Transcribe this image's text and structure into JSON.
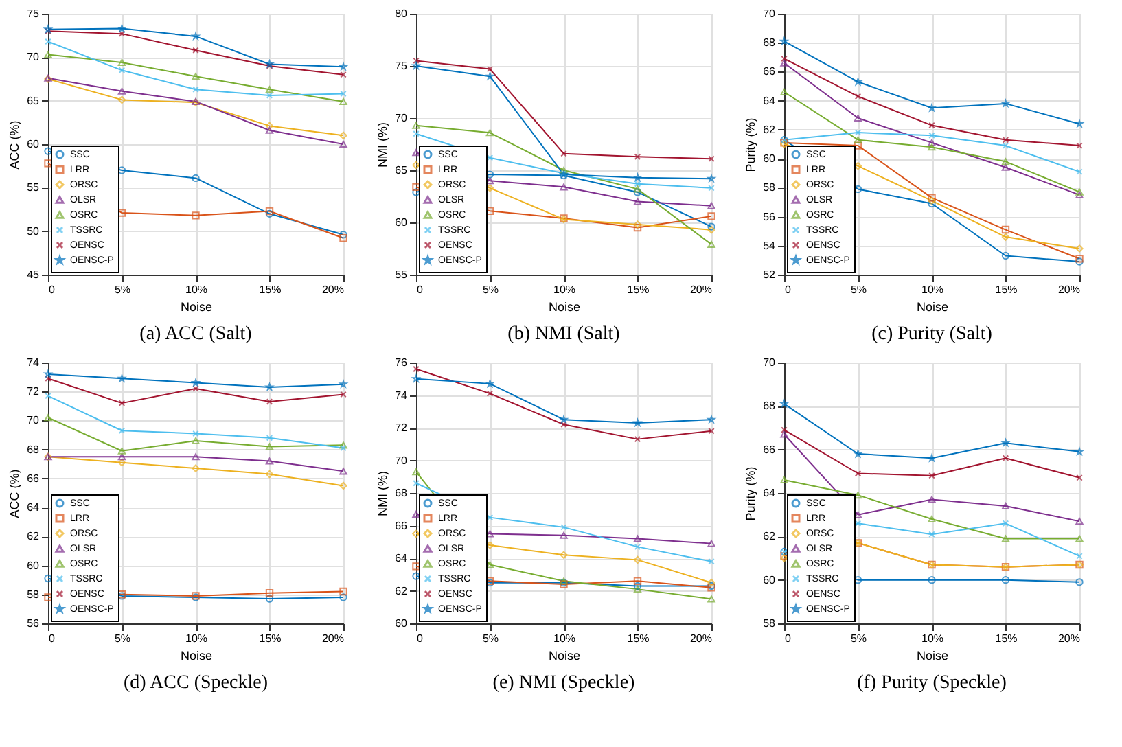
{
  "chart_data": [
    {
      "type": "line",
      "title": "(a)  ACC (Salt)",
      "xlabel": "Noise",
      "ylabel": "ACC (%)",
      "categories": [
        "0",
        "5%",
        "10%",
        "15%",
        "20%"
      ],
      "ylim": [
        45,
        75
      ],
      "yticks": [
        45,
        50,
        55,
        60,
        65,
        70,
        75
      ],
      "grid": true,
      "legend": "bottom left",
      "line_style": "solid",
      "series": [
        {
          "name": "SSC",
          "color": "#0072bd",
          "marker": "circle",
          "values": [
            59.2,
            57.0,
            56.1,
            52.0,
            49.6
          ]
        },
        {
          "name": "LRR",
          "color": "#d95319",
          "marker": "square",
          "values": [
            57.8,
            52.1,
            51.8,
            52.3,
            49.2
          ]
        },
        {
          "name": "ORSC",
          "color": "#edb120",
          "marker": "diamond",
          "values": [
            67.5,
            65.1,
            64.8,
            62.1,
            61.0
          ]
        },
        {
          "name": "OLSR",
          "color": "#7e2f8e",
          "marker": "triangle",
          "values": [
            67.6,
            66.1,
            64.9,
            61.6,
            60.0
          ]
        },
        {
          "name": "OSRC",
          "color": "#77ac30",
          "marker": "triangle",
          "values": [
            70.3,
            69.4,
            67.8,
            66.3,
            64.9
          ]
        },
        {
          "name": "TSSRC",
          "color": "#4dbeee",
          "marker": "cross",
          "values": [
            71.8,
            68.5,
            66.3,
            65.6,
            65.8
          ]
        },
        {
          "name": "OENSC",
          "color": "#a2142f",
          "marker": "cross",
          "values": [
            73.0,
            72.7,
            70.8,
            69.0,
            68.0
          ]
        },
        {
          "name": "OENSC-P",
          "color": "#0072bd",
          "marker": "star",
          "values": [
            73.2,
            73.3,
            72.4,
            69.2,
            68.9
          ]
        }
      ]
    },
    {
      "type": "line",
      "title": "(b)  NMI (Salt)",
      "xlabel": "Noise",
      "ylabel": "NMI (%)",
      "categories": [
        "0",
        "5%",
        "10%",
        "15%",
        "20%"
      ],
      "ylim": [
        55,
        80
      ],
      "yticks": [
        55,
        60,
        65,
        70,
        75,
        80
      ],
      "grid": true,
      "legend": "bottom left",
      "line_style": "solid",
      "series": [
        {
          "name": "SSC",
          "color": "#0072bd",
          "marker": "circle",
          "values": [
            62.9,
            64.6,
            64.5,
            62.9,
            59.6
          ]
        },
        {
          "name": "LRR",
          "color": "#d95319",
          "marker": "square",
          "values": [
            63.4,
            61.1,
            60.4,
            59.5,
            60.6
          ]
        },
        {
          "name": "ORSC",
          "color": "#edb120",
          "marker": "diamond",
          "values": [
            65.5,
            63.3,
            60.3,
            59.8,
            59.3
          ]
        },
        {
          "name": "OLSR",
          "color": "#7e2f8e",
          "marker": "triangle",
          "values": [
            66.7,
            64.0,
            63.4,
            62.0,
            61.6
          ]
        },
        {
          "name": "OSRC",
          "color": "#77ac30",
          "marker": "triangle",
          "values": [
            69.3,
            68.6,
            65.0,
            63.2,
            57.9
          ]
        },
        {
          "name": "TSSRC",
          "color": "#4dbeee",
          "marker": "cross",
          "values": [
            68.5,
            66.2,
            64.7,
            63.7,
            63.3
          ]
        },
        {
          "name": "OENSC",
          "color": "#a2142f",
          "marker": "cross",
          "values": [
            75.5,
            74.7,
            66.6,
            66.3,
            66.1
          ]
        },
        {
          "name": "OENSC-P",
          "color": "#0072bd",
          "marker": "star",
          "values": [
            75.0,
            74.0,
            64.6,
            64.3,
            64.2
          ]
        }
      ]
    },
    {
      "type": "line",
      "title": "(c)  Purity (Salt)",
      "xlabel": "Noise",
      "ylabel": "Purity (%)",
      "categories": [
        "0",
        "5%",
        "10%",
        "15%",
        "20%"
      ],
      "ylim": [
        52,
        70
      ],
      "yticks": [
        52,
        54,
        56,
        58,
        60,
        62,
        64,
        66,
        68,
        70
      ],
      "grid": true,
      "legend": "bottom left",
      "line_style": "solid",
      "series": [
        {
          "name": "SSC",
          "color": "#0072bd",
          "marker": "circle",
          "values": [
            61.3,
            57.9,
            56.9,
            53.3,
            52.9
          ]
        },
        {
          "name": "LRR",
          "color": "#d95319",
          "marker": "square",
          "values": [
            61.1,
            60.9,
            57.3,
            55.1,
            53.1
          ]
        },
        {
          "name": "ORSC",
          "color": "#edb120",
          "marker": "diamond",
          "values": [
            61.0,
            59.5,
            57.1,
            54.6,
            53.8
          ]
        },
        {
          "name": "OLSR",
          "color": "#7e2f8e",
          "marker": "triangle",
          "values": [
            66.6,
            62.8,
            61.1,
            59.4,
            57.5
          ]
        },
        {
          "name": "OSRC",
          "color": "#77ac30",
          "marker": "triangle",
          "values": [
            64.6,
            61.3,
            60.8,
            59.8,
            57.7
          ]
        },
        {
          "name": "TSSRC",
          "color": "#4dbeee",
          "marker": "cross",
          "values": [
            61.3,
            61.8,
            61.6,
            60.9,
            59.1
          ]
        },
        {
          "name": "OENSC",
          "color": "#a2142f",
          "marker": "cross",
          "values": [
            66.9,
            64.3,
            62.3,
            61.3,
            60.9
          ]
        },
        {
          "name": "OENSC-P",
          "color": "#0072bd",
          "marker": "star",
          "values": [
            68.1,
            65.3,
            63.5,
            63.8,
            62.4
          ]
        }
      ]
    },
    {
      "type": "line",
      "title": "(d)  ACC (Speckle)",
      "xlabel": "Noise",
      "ylabel": "ACC (%)",
      "categories": [
        "0",
        "5%",
        "10%",
        "15%",
        "20%"
      ],
      "ylim": [
        56,
        74
      ],
      "yticks": [
        56,
        58,
        60,
        62,
        64,
        66,
        68,
        70,
        72,
        74
      ],
      "grid": true,
      "legend": "bottom left",
      "line_style": "solid",
      "series": [
        {
          "name": "SSC",
          "color": "#0072bd",
          "marker": "circle",
          "values": [
            59.1,
            57.9,
            57.8,
            57.7,
            57.8
          ]
        },
        {
          "name": "LRR",
          "color": "#d95319",
          "marker": "square",
          "values": [
            57.8,
            58.0,
            57.9,
            58.1,
            58.2
          ]
        },
        {
          "name": "ORSC",
          "color": "#edb120",
          "marker": "diamond",
          "values": [
            67.5,
            67.1,
            66.7,
            66.3,
            65.5
          ]
        },
        {
          "name": "OLSR",
          "color": "#7e2f8e",
          "marker": "triangle",
          "values": [
            67.5,
            67.5,
            67.5,
            67.2,
            66.5
          ]
        },
        {
          "name": "OSRC",
          "color": "#77ac30",
          "marker": "triangle",
          "values": [
            70.2,
            67.9,
            68.6,
            68.2,
            68.3
          ]
        },
        {
          "name": "TSSRC",
          "color": "#4dbeee",
          "marker": "cross",
          "values": [
            71.7,
            69.3,
            69.1,
            68.8,
            68.1
          ]
        },
        {
          "name": "OENSC",
          "color": "#a2142f",
          "marker": "cross",
          "values": [
            72.9,
            71.2,
            72.2,
            71.3,
            71.8
          ]
        },
        {
          "name": "OENSC-P",
          "color": "#0072bd",
          "marker": "star",
          "values": [
            73.2,
            72.9,
            72.6,
            72.3,
            72.5
          ]
        }
      ]
    },
    {
      "type": "line",
      "title": "(e)  NMI (Speckle)",
      "xlabel": "Noise",
      "ylabel": "NMI (%)",
      "categories": [
        "0",
        "5%",
        "10%",
        "15%",
        "20%"
      ],
      "ylim": [
        60,
        76
      ],
      "yticks": [
        60,
        62,
        64,
        66,
        68,
        70,
        72,
        74,
        76
      ],
      "grid": true,
      "legend": "bottom left",
      "line_style": "solid",
      "series": [
        {
          "name": "SSC",
          "color": "#0072bd",
          "marker": "circle",
          "values": [
            62.9,
            62.5,
            62.5,
            62.3,
            62.3
          ]
        },
        {
          "name": "LRR",
          "color": "#d95319",
          "marker": "square",
          "values": [
            63.5,
            62.6,
            62.4,
            62.6,
            62.2
          ]
        },
        {
          "name": "ORSC",
          "color": "#edb120",
          "marker": "diamond",
          "values": [
            65.5,
            64.8,
            64.2,
            63.9,
            62.5
          ]
        },
        {
          "name": "OLSR",
          "color": "#7e2f8e",
          "marker": "triangle",
          "values": [
            66.7,
            65.5,
            65.4,
            65.2,
            64.9
          ]
        },
        {
          "name": "OSRC",
          "color": "#77ac30",
          "marker": "triangle",
          "values": [
            69.3,
            63.6,
            62.6,
            62.1,
            61.5
          ]
        },
        {
          "name": "TSSRC",
          "color": "#4dbeee",
          "marker": "cross",
          "values": [
            68.6,
            66.5,
            65.9,
            64.7,
            63.8
          ]
        },
        {
          "name": "OENSC",
          "color": "#a2142f",
          "marker": "cross",
          "values": [
            75.6,
            74.1,
            72.2,
            71.3,
            71.8
          ]
        },
        {
          "name": "OENSC-P",
          "color": "#0072bd",
          "marker": "star",
          "values": [
            75.0,
            74.7,
            72.5,
            72.3,
            72.5
          ]
        }
      ]
    },
    {
      "type": "line",
      "title": "(f)  Purity (Speckle)",
      "xlabel": "Noise",
      "ylabel": "Purity (%)",
      "categories": [
        "0",
        "5%",
        "10%",
        "15%",
        "20%"
      ],
      "ylim": [
        58,
        70
      ],
      "yticks": [
        58,
        60,
        62,
        64,
        66,
        68,
        70
      ],
      "grid": true,
      "legend": "bottom left",
      "line_style": "solid",
      "series": [
        {
          "name": "SSC",
          "color": "#0072bd",
          "marker": "circle",
          "values": [
            61.3,
            60.0,
            60.0,
            60.0,
            59.9
          ]
        },
        {
          "name": "LRR",
          "color": "#d95319",
          "marker": "square",
          "values": [
            61.1,
            61.7,
            60.7,
            60.6,
            60.7
          ]
        },
        {
          "name": "ORSC",
          "color": "#edb120",
          "marker": "diamond",
          "values": [
            61.0,
            61.7,
            60.7,
            60.6,
            60.7
          ]
        },
        {
          "name": "OLSR",
          "color": "#7e2f8e",
          "marker": "triangle",
          "values": [
            66.7,
            63.0,
            63.7,
            63.4,
            62.7
          ]
        },
        {
          "name": "OSRC",
          "color": "#77ac30",
          "marker": "triangle",
          "values": [
            64.6,
            63.9,
            62.8,
            61.9,
            61.9
          ]
        },
        {
          "name": "TSSRC",
          "color": "#4dbeee",
          "marker": "cross",
          "values": [
            61.3,
            62.6,
            62.1,
            62.6,
            61.1
          ]
        },
        {
          "name": "OENSC",
          "color": "#a2142f",
          "marker": "cross",
          "values": [
            66.9,
            64.9,
            64.8,
            65.6,
            64.7
          ]
        },
        {
          "name": "OENSC-P",
          "color": "#0072bd",
          "marker": "star",
          "values": [
            68.1,
            65.8,
            65.6,
            66.3,
            65.9
          ]
        }
      ]
    }
  ]
}
